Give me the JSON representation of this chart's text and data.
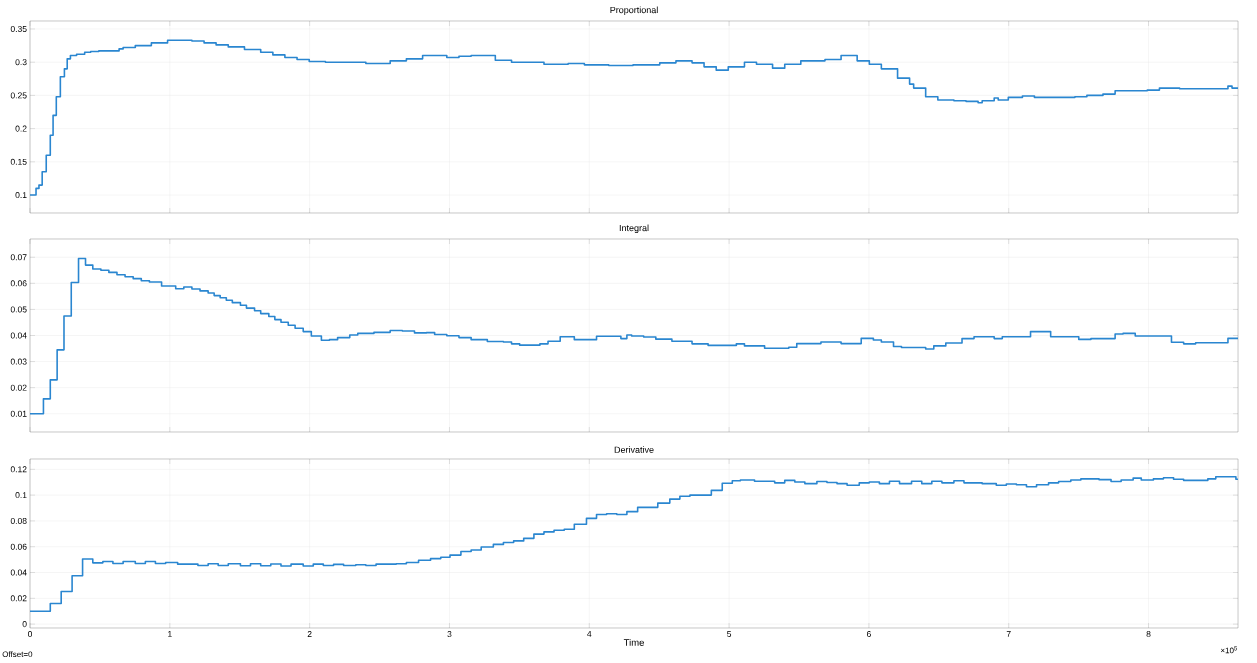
{
  "chart_data": [
    {
      "type": "step",
      "title": "Proportional",
      "tick_labels": "y",
      "grid": true,
      "xlim": [
        0,
        8.64
      ],
      "ylim": [
        0.073,
        0.362
      ],
      "xticks": [
        0,
        1,
        2,
        3,
        4,
        5,
        6,
        7,
        8
      ],
      "yticks": [
        0.1,
        0.15,
        0.2,
        0.25,
        0.3,
        0.35
      ],
      "x": [
        0,
        0.043,
        0.064,
        0.087,
        0.116,
        0.145,
        0.165,
        0.188,
        0.217,
        0.246,
        0.266,
        0.289,
        0.333,
        0.391,
        0.434,
        0.492,
        0.637,
        0.666,
        0.753,
        0.868,
        0.984,
        1.158,
        1.245,
        1.331,
        1.418,
        1.534,
        1.65,
        1.737,
        1.823,
        1.91,
        1.997,
        2.113,
        2.402,
        2.576,
        2.692,
        2.808,
        2.981,
        3.068,
        3.155,
        3.328,
        3.444,
        3.676,
        3.849,
        3.965,
        4.139,
        4.313,
        4.504,
        4.62,
        4.735,
        4.821,
        4.908,
        4.994,
        5.11,
        5.196,
        5.311,
        5.398,
        5.513,
        5.686,
        5.801,
        5.916,
        6.003,
        6.089,
        6.205,
        6.291,
        6.32,
        6.406,
        6.493,
        6.608,
        6.695,
        6.781,
        6.81,
        6.896,
        6.925,
        6.997,
        7.098,
        7.184,
        7.473,
        7.559,
        7.674,
        7.761,
        7.991,
        8.078,
        8.222,
        8.568,
        8.597,
        8.64
      ],
      "series": [
        {
          "color": "#2a86d0",
          "values": [
            0.1,
            0.11,
            0.115,
            0.135,
            0.16,
            0.19,
            0.22,
            0.248,
            0.278,
            0.29,
            0.305,
            0.31,
            0.312,
            0.315,
            0.316,
            0.317,
            0.32,
            0.322,
            0.325,
            0.329,
            0.333,
            0.332,
            0.329,
            0.326,
            0.323,
            0.319,
            0.315,
            0.311,
            0.307,
            0.304,
            0.301,
            0.3,
            0.298,
            0.302,
            0.305,
            0.31,
            0.307,
            0.309,
            0.31,
            0.303,
            0.3,
            0.297,
            0.298,
            0.296,
            0.295,
            0.296,
            0.299,
            0.302,
            0.299,
            0.293,
            0.288,
            0.293,
            0.3,
            0.297,
            0.291,
            0.297,
            0.302,
            0.304,
            0.31,
            0.302,
            0.297,
            0.29,
            0.276,
            0.267,
            0.261,
            0.248,
            0.243,
            0.242,
            0.241,
            0.239,
            0.242,
            0.246,
            0.243,
            0.247,
            0.249,
            0.247,
            0.248,
            0.25,
            0.252,
            0.257,
            0.258,
            0.261,
            0.26,
            0.264,
            0.261,
            0.261
          ]
        }
      ]
    },
    {
      "type": "step",
      "title": "Integral",
      "tick_labels": "y",
      "grid": true,
      "xlim": [
        0,
        8.64
      ],
      "ylim": [
        0.003,
        0.077
      ],
      "xticks": [
        0,
        1,
        2,
        3,
        4,
        5,
        6,
        7,
        8
      ],
      "yticks": [
        0.01,
        0.02,
        0.03,
        0.04,
        0.05,
        0.06,
        0.07
      ],
      "x": [
        0,
        0.096,
        0.145,
        0.194,
        0.243,
        0.295,
        0.347,
        0.397,
        0.449,
        0.507,
        0.564,
        0.622,
        0.68,
        0.738,
        0.796,
        0.854,
        0.941,
        1.042,
        1.1,
        1.158,
        1.216,
        1.274,
        1.317,
        1.36,
        1.404,
        1.447,
        1.505,
        1.548,
        1.606,
        1.65,
        1.708,
        1.751,
        1.795,
        1.847,
        1.896,
        1.954,
        2.012,
        2.084,
        2.142,
        2.2,
        2.287,
        2.344,
        2.46,
        2.576,
        2.663,
        2.75,
        2.836,
        2.894,
        2.981,
        3.068,
        3.155,
        3.271,
        3.386,
        3.444,
        3.502,
        3.647,
        3.705,
        3.792,
        3.893,
        4.052,
        4.226,
        4.269,
        4.303,
        4.389,
        4.476,
        4.591,
        4.735,
        4.85,
        5.052,
        5.11,
        5.254,
        5.427,
        5.484,
        5.657,
        5.801,
        5.945,
        6.032,
        6.089,
        6.176,
        6.233,
        6.406,
        6.464,
        6.55,
        6.666,
        6.752,
        6.896,
        6.954,
        7.156,
        7.3,
        7.501,
        7.588,
        7.761,
        7.818,
        7.905,
        8.164,
        8.251,
        8.337,
        8.568,
        8.64
      ],
      "series": [
        {
          "color": "#2a86d0",
          "values": [
            0.01,
            0.0157,
            0.023,
            0.0345,
            0.0475,
            0.0603,
            0.0695,
            0.067,
            0.0655,
            0.065,
            0.0642,
            0.0633,
            0.0625,
            0.0618,
            0.061,
            0.0605,
            0.059,
            0.0579,
            0.0586,
            0.0578,
            0.0571,
            0.0563,
            0.0553,
            0.0545,
            0.0535,
            0.0526,
            0.0516,
            0.0505,
            0.0495,
            0.0484,
            0.0473,
            0.0461,
            0.0451,
            0.0439,
            0.0428,
            0.0415,
            0.0398,
            0.0382,
            0.0384,
            0.0392,
            0.0402,
            0.0408,
            0.0412,
            0.0419,
            0.0417,
            0.041,
            0.0411,
            0.0404,
            0.0399,
            0.0392,
            0.0384,
            0.0377,
            0.0375,
            0.0368,
            0.0363,
            0.0368,
            0.0378,
            0.0395,
            0.0384,
            0.0397,
            0.0388,
            0.0402,
            0.0398,
            0.0394,
            0.0386,
            0.0378,
            0.0368,
            0.0362,
            0.0368,
            0.036,
            0.0351,
            0.0355,
            0.0369,
            0.0375,
            0.0369,
            0.0389,
            0.0383,
            0.0375,
            0.0358,
            0.0354,
            0.0348,
            0.036,
            0.0371,
            0.0388,
            0.0395,
            0.0388,
            0.0395,
            0.0415,
            0.0395,
            0.0385,
            0.0388,
            0.0406,
            0.0408,
            0.0398,
            0.0374,
            0.0368,
            0.0372,
            0.0389,
            0.0389
          ]
        }
      ]
    },
    {
      "type": "step",
      "title": "Derivative",
      "xlabel": "Time",
      "grid": true,
      "xlim": [
        0,
        8.64
      ],
      "ylim": [
        -0.003,
        0.128
      ],
      "annotations": [
        "Offset=0",
        "×10$^{5}$"
      ],
      "xticks": [
        0,
        1,
        2,
        3,
        4,
        5,
        6,
        7,
        8
      ],
      "yticks": [
        0,
        0.02,
        0.04,
        0.06,
        0.08,
        0.1,
        0.12
      ],
      "x": [
        0,
        0.145,
        0.223,
        0.301,
        0.376,
        0.449,
        0.521,
        0.593,
        0.666,
        0.753,
        0.825,
        0.897,
        0.97,
        1.056,
        1.201,
        1.274,
        1.346,
        1.418,
        1.505,
        1.577,
        1.65,
        1.722,
        1.795,
        1.867,
        1.954,
        2.026,
        2.098,
        2.171,
        2.243,
        2.33,
        2.402,
        2.475,
        2.619,
        2.692,
        2.779,
        2.865,
        2.938,
        3.004,
        3.082,
        3.155,
        3.227,
        3.314,
        3.386,
        3.459,
        3.531,
        3.604,
        3.676,
        3.748,
        3.821,
        3.893,
        3.98,
        4.052,
        4.124,
        4.197,
        4.269,
        4.346,
        4.49,
        4.576,
        4.648,
        4.72,
        4.873,
        4.951,
        5.023,
        5.081,
        5.182,
        5.326,
        5.398,
        5.47,
        5.542,
        5.628,
        5.7,
        5.772,
        5.844,
        5.931,
        6.003,
        6.075,
        6.147,
        6.219,
        6.305,
        6.378,
        6.45,
        6.522,
        6.608,
        6.68,
        6.81,
        6.911,
        6.983,
        7.055,
        7.127,
        7.199,
        7.285,
        7.357,
        7.444,
        7.516,
        7.646,
        7.732,
        7.804,
        7.89,
        7.948,
        8.035,
        8.107,
        8.179,
        8.251,
        8.424,
        8.481,
        8.625,
        8.64
      ],
      "series": [
        {
          "color": "#2a86d0",
          "values": [
            0.01,
            0.016,
            0.0253,
            0.0375,
            0.0505,
            0.0475,
            0.0485,
            0.047,
            0.0485,
            0.047,
            0.0485,
            0.047,
            0.0478,
            0.0465,
            0.0455,
            0.0468,
            0.0455,
            0.0468,
            0.0453,
            0.0468,
            0.0452,
            0.0466,
            0.045,
            0.0465,
            0.045,
            0.0465,
            0.0455,
            0.0463,
            0.0455,
            0.046,
            0.0455,
            0.0465,
            0.0468,
            0.0478,
            0.0495,
            0.0508,
            0.0518,
            0.0535,
            0.0563,
            0.0575,
            0.0598,
            0.0618,
            0.0633,
            0.0645,
            0.0665,
            0.0698,
            0.0715,
            0.0728,
            0.0735,
            0.0774,
            0.082,
            0.085,
            0.0855,
            0.085,
            0.0872,
            0.0905,
            0.0938,
            0.0969,
            0.0991,
            0.1,
            0.1037,
            0.1092,
            0.1111,
            0.1117,
            0.1108,
            0.1095,
            0.1114,
            0.1102,
            0.1089,
            0.1105,
            0.1098,
            0.1089,
            0.1077,
            0.1095,
            0.1102,
            0.1089,
            0.1108,
            0.1089,
            0.1108,
            0.1089,
            0.1108,
            0.1095,
            0.1111,
            0.1095,
            0.1089,
            0.1077,
            0.1086,
            0.108,
            0.1065,
            0.108,
            0.1095,
            0.1105,
            0.1117,
            0.1126,
            0.112,
            0.1105,
            0.1117,
            0.1132,
            0.1117,
            0.1126,
            0.1135,
            0.1123,
            0.1114,
            0.1126,
            0.1142,
            0.1123,
            0.1123
          ]
        }
      ]
    }
  ]
}
